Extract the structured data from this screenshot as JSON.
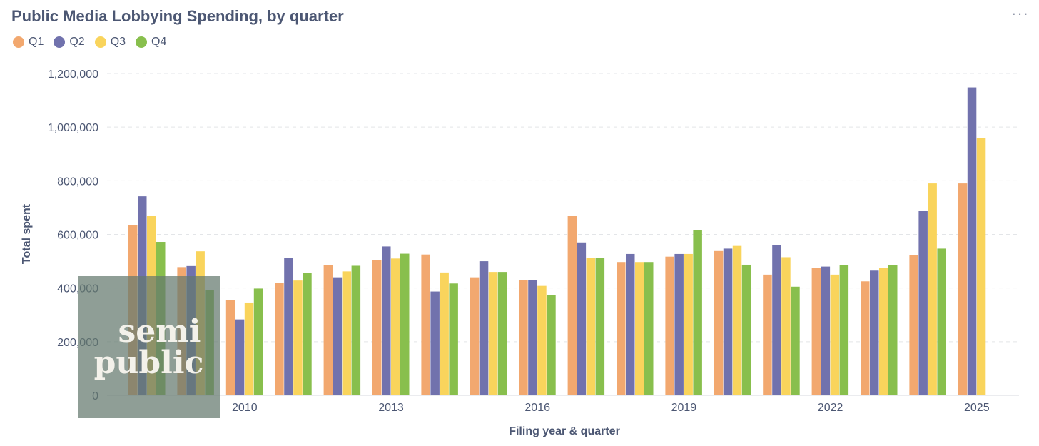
{
  "header": {
    "title": "Public Media Lobbying Spending, by quarter",
    "more_icon": "more-horizontal-icon",
    "more_label": "···"
  },
  "legend": [
    {
      "label": "Q1",
      "color": "#f2a86f"
    },
    {
      "label": "Q2",
      "color": "#7172ad"
    },
    {
      "label": "Q3",
      "color": "#f9d45c"
    },
    {
      "label": "Q4",
      "color": "#88bf4d"
    }
  ],
  "logo": {
    "line1": "semi",
    "line2": "public"
  },
  "chart_data": {
    "type": "bar",
    "title": "Public Media Lobbying Spending, by quarter",
    "xlabel": "Filing year & quarter",
    "ylabel": "Total spent",
    "ylim": [
      0,
      1200000
    ],
    "yticks": [
      "0",
      "200,000",
      "400,000",
      "600,000",
      "800,000",
      "1,000,000",
      "1,200,000"
    ],
    "yticks_values": [
      0,
      200000,
      400000,
      600000,
      800000,
      1000000,
      1200000
    ],
    "grid": true,
    "categories": [
      "2008",
      "2009",
      "2010",
      "2011",
      "2012",
      "2013",
      "2014",
      "2015",
      "2016",
      "2017",
      "2018",
      "2019",
      "2020",
      "2021",
      "2022",
      "2023",
      "2024",
      "2025"
    ],
    "xtick_labels": [
      "",
      "",
      "2010",
      "",
      "",
      "2013",
      "",
      "",
      "2016",
      "",
      "",
      "2019",
      "",
      "",
      "2022",
      "",
      "",
      "2025"
    ],
    "series": [
      {
        "name": "Q1",
        "color": "#f2a86f",
        "values": [
          635000,
          478000,
          355000,
          418000,
          485000,
          505000,
          525000,
          440000,
          430000,
          670000,
          497000,
          517000,
          538000,
          450000,
          474000,
          425000,
          523000,
          790000
        ]
      },
      {
        "name": "Q2",
        "color": "#7172ad",
        "values": [
          742000,
          482000,
          283000,
          512000,
          440000,
          555000,
          387000,
          500000,
          430000,
          570000,
          527000,
          527000,
          547000,
          560000,
          480000,
          465000,
          688000,
          1148000
        ]
      },
      {
        "name": "Q3",
        "color": "#f9d45c",
        "values": [
          668000,
          537000,
          346000,
          428000,
          462000,
          510000,
          458000,
          460000,
          408000,
          512000,
          497000,
          527000,
          557000,
          515000,
          450000,
          475000,
          790000,
          960000
        ]
      },
      {
        "name": "Q4",
        "color": "#88bf4d",
        "values": [
          572000,
          393000,
          398000,
          455000,
          483000,
          528000,
          417000,
          460000,
          375000,
          512000,
          497000,
          617000,
          487000,
          405000,
          485000,
          485000,
          547000,
          null
        ]
      }
    ]
  }
}
